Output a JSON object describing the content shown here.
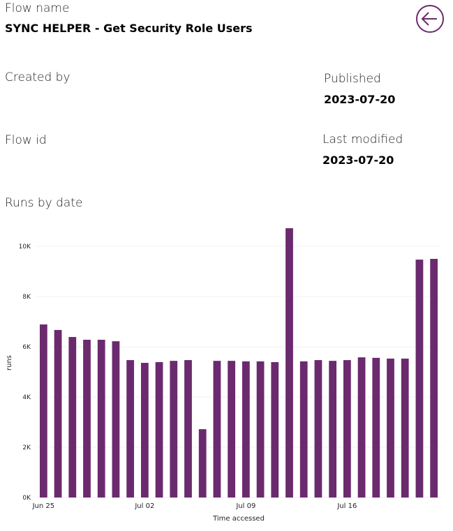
{
  "details": {
    "flow_name_label": "Flow name",
    "flow_name": "SYNC HELPER - Get Security Role Users",
    "created_by_label": "Created by",
    "published_label": "Published",
    "published": "2023-07-20",
    "flow_id_label": "Flow id",
    "last_modified_label": "Last modified",
    "last_modified": "2023-07-20",
    "runs_heading": "Runs by date"
  },
  "chart_data": {
    "type": "bar",
    "x_label": "Time accessed",
    "y_label": "runs",
    "color": "#6b2a6e",
    "categories": [
      "Jun 25",
      null,
      null,
      null,
      null,
      null,
      null,
      "Jul 02",
      null,
      null,
      null,
      null,
      null,
      null,
      "Jul 09",
      null,
      null,
      null,
      null,
      null,
      null,
      "Jul 16",
      null,
      null,
      null,
      null,
      null,
      null
    ],
    "values": [
      6890,
      6670,
      6390,
      6280,
      6280,
      6220,
      5470,
      5360,
      5390,
      5440,
      5470,
      2720,
      5440,
      5440,
      5420,
      5420,
      5390,
      10720,
      5420,
      5470,
      5440,
      5470,
      5580,
      5560,
      5530,
      5530,
      9470,
      9500
    ],
    "ylim": [
      0,
      11000
    ],
    "yticks": [
      {
        "value": 0,
        "label": "0K"
      },
      {
        "value": 2000,
        "label": "2K"
      },
      {
        "value": 4000,
        "label": "4K"
      },
      {
        "value": 6000,
        "label": "6K"
      },
      {
        "value": 8000,
        "label": "8K"
      },
      {
        "value": 10000,
        "label": "10K"
      }
    ],
    "grid": true
  }
}
